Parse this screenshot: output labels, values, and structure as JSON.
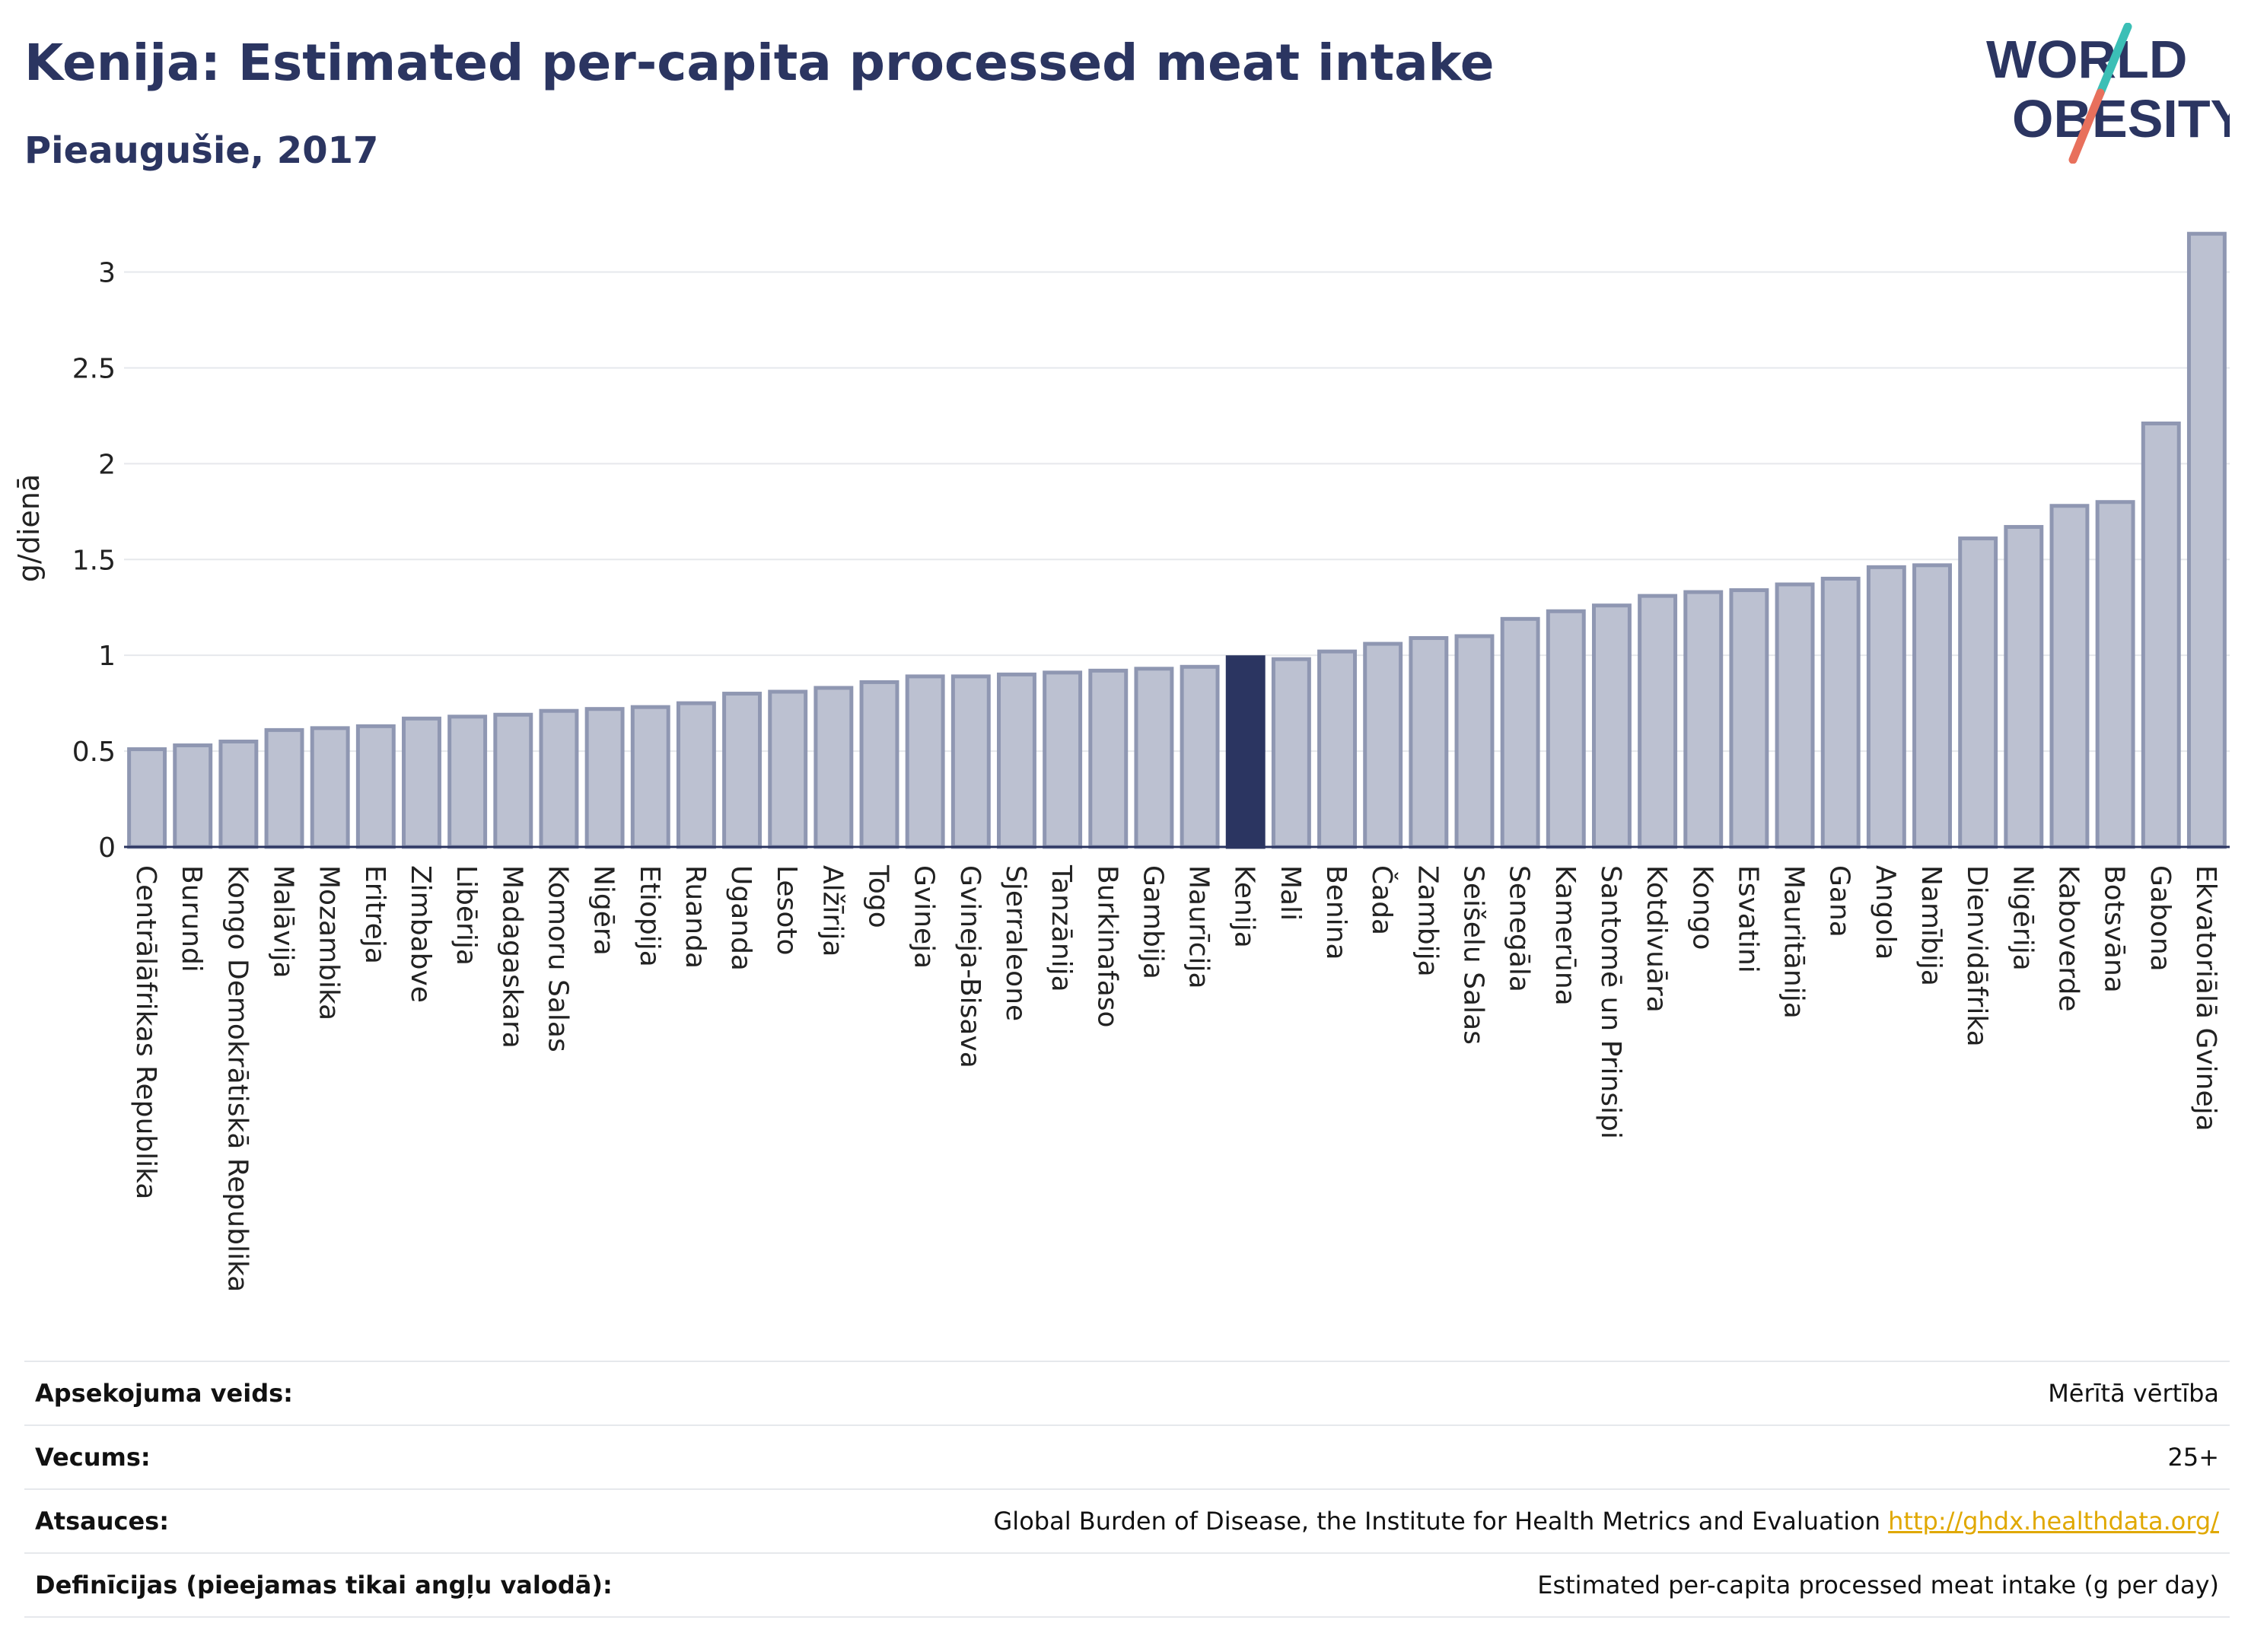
{
  "header": {
    "title": "Kenija: Estimated per-capita processed meat intake",
    "subtitle": "Pieaugušie, 2017"
  },
  "logo": {
    "line1": "WORLD",
    "line2": "OBESITY"
  },
  "colors": {
    "bar": "#bcc1d1",
    "bar_stroke": "#8f97b2",
    "highlight": "#2b3561",
    "grid": "#e6e8ec",
    "title": "#2b3561",
    "logo_teal": "#3bbfb6",
    "logo_coral": "#e8705c"
  },
  "chart_data": {
    "type": "bar",
    "ylabel": "g/dienā",
    "ylim": [
      0,
      3.3
    ],
    "yticks": [
      0,
      0.5,
      1,
      1.5,
      2,
      2.5,
      3
    ],
    "ytick_labels": [
      "0",
      "0.5",
      "1",
      "1.5",
      "2",
      "2.5",
      "3"
    ],
    "grid": true,
    "highlight": "Kenija",
    "categories": [
      "Centrālāfrikas Republika",
      "Burundi",
      "Kongo Demokrātiskā Republika",
      "Malāvija",
      "Mozambika",
      "Eritreja",
      "Zimbabve",
      "Libērija",
      "Madagaskara",
      "Komoru Salas",
      "Nigēra",
      "Etiopija",
      "Ruanda",
      "Uganda",
      "Lesoto",
      "Alžīrija",
      "Togo",
      "Gvineja",
      "Gvineja-Bisava",
      "Sjerraleone",
      "Tanzānija",
      "Burkinafaso",
      "Gambija",
      "Maurīcija",
      "Kenija",
      "Mali",
      "Benina",
      "Čada",
      "Zambija",
      "Seišelu Salas",
      "Senegāla",
      "Kamerūna",
      "Santomē un Prinsipi",
      "Kotdivuāra",
      "Kongo",
      "Esvatini",
      "Mauritānija",
      "Gana",
      "Angola",
      "Namībija",
      "Dienvidāfrika",
      "Nigērija",
      "Kaboverde",
      "Botsvāna",
      "Gabona",
      "Ekvatoriālā Gvineja"
    ],
    "values": [
      0.51,
      0.53,
      0.55,
      0.61,
      0.62,
      0.63,
      0.67,
      0.68,
      0.69,
      0.71,
      0.72,
      0.73,
      0.75,
      0.8,
      0.81,
      0.83,
      0.86,
      0.89,
      0.89,
      0.9,
      0.91,
      0.92,
      0.93,
      0.94,
      0.99,
      0.98,
      1.02,
      1.06,
      1.09,
      1.1,
      1.19,
      1.23,
      1.26,
      1.31,
      1.33,
      1.34,
      1.37,
      1.4,
      1.46,
      1.47,
      1.61,
      1.67,
      1.78,
      1.8,
      2.21,
      3.2
    ]
  },
  "meta": {
    "survey_label": "Apsekojuma veids:",
    "survey_value": "Mērītā vērtība",
    "age_label": "Vecums:",
    "age_value": "25+",
    "source_label": "Atsauces:",
    "source_value": "Global Burden of Disease, the Institute for Health Metrics and Evaluation",
    "source_link": "http://ghdx.healthdata.org/",
    "definition_label": "Definīcijas (pieejamas tikai angļu valodā):",
    "definition_value": "Estimated per-capita processed meat intake (g per day)"
  }
}
